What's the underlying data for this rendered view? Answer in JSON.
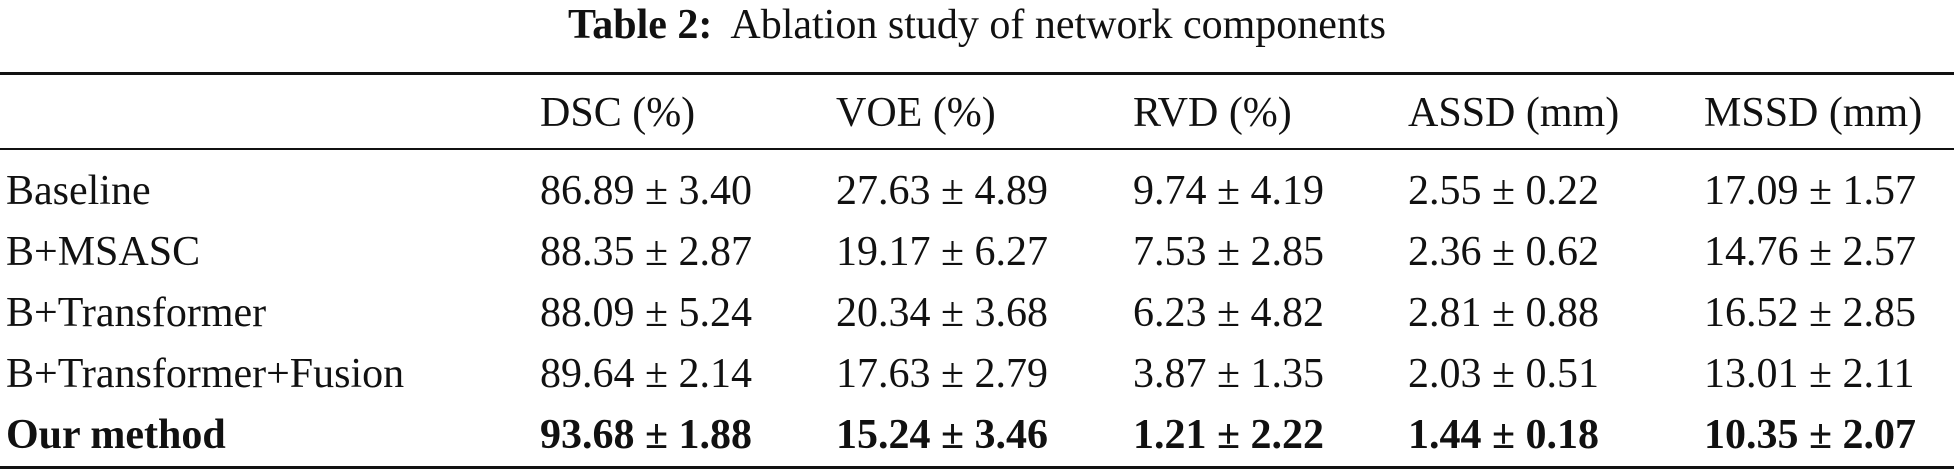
{
  "caption": {
    "label": "Table 2:",
    "text": "Ablation study of network components"
  },
  "table": {
    "headers": [
      "",
      "DSC (%)",
      "VOE (%)",
      "RVD (%)",
      "ASSD (mm)",
      "MSSD (mm)"
    ],
    "rows": [
      [
        "Baseline",
        "86.89 ± 3.40",
        "27.63 ± 4.89",
        "9.74 ± 4.19",
        "2.55 ± 0.22",
        "17.09 ± 1.57"
      ],
      [
        "B+MSASC",
        "88.35 ± 2.87",
        "19.17 ± 6.27",
        "7.53 ± 2.85",
        "2.36 ± 0.62",
        "14.76 ± 2.57"
      ],
      [
        "B+Transformer",
        "88.09 ± 5.24",
        "20.34 ± 3.68",
        "6.23 ± 4.82",
        "2.81 ± 0.88",
        "16.52 ± 2.85"
      ],
      [
        "B+Transformer+Fusion",
        "89.64 ± 2.14",
        "17.63 ± 2.79",
        "3.87 ± 1.35",
        "2.03 ± 0.51",
        "13.01 ± 2.11"
      ],
      [
        "Our method",
        "93.68 ± 1.88",
        "15.24 ± 3.46",
        "1.21 ± 2.22",
        "1.44 ± 0.18",
        "10.35 ± 2.07"
      ]
    ]
  }
}
